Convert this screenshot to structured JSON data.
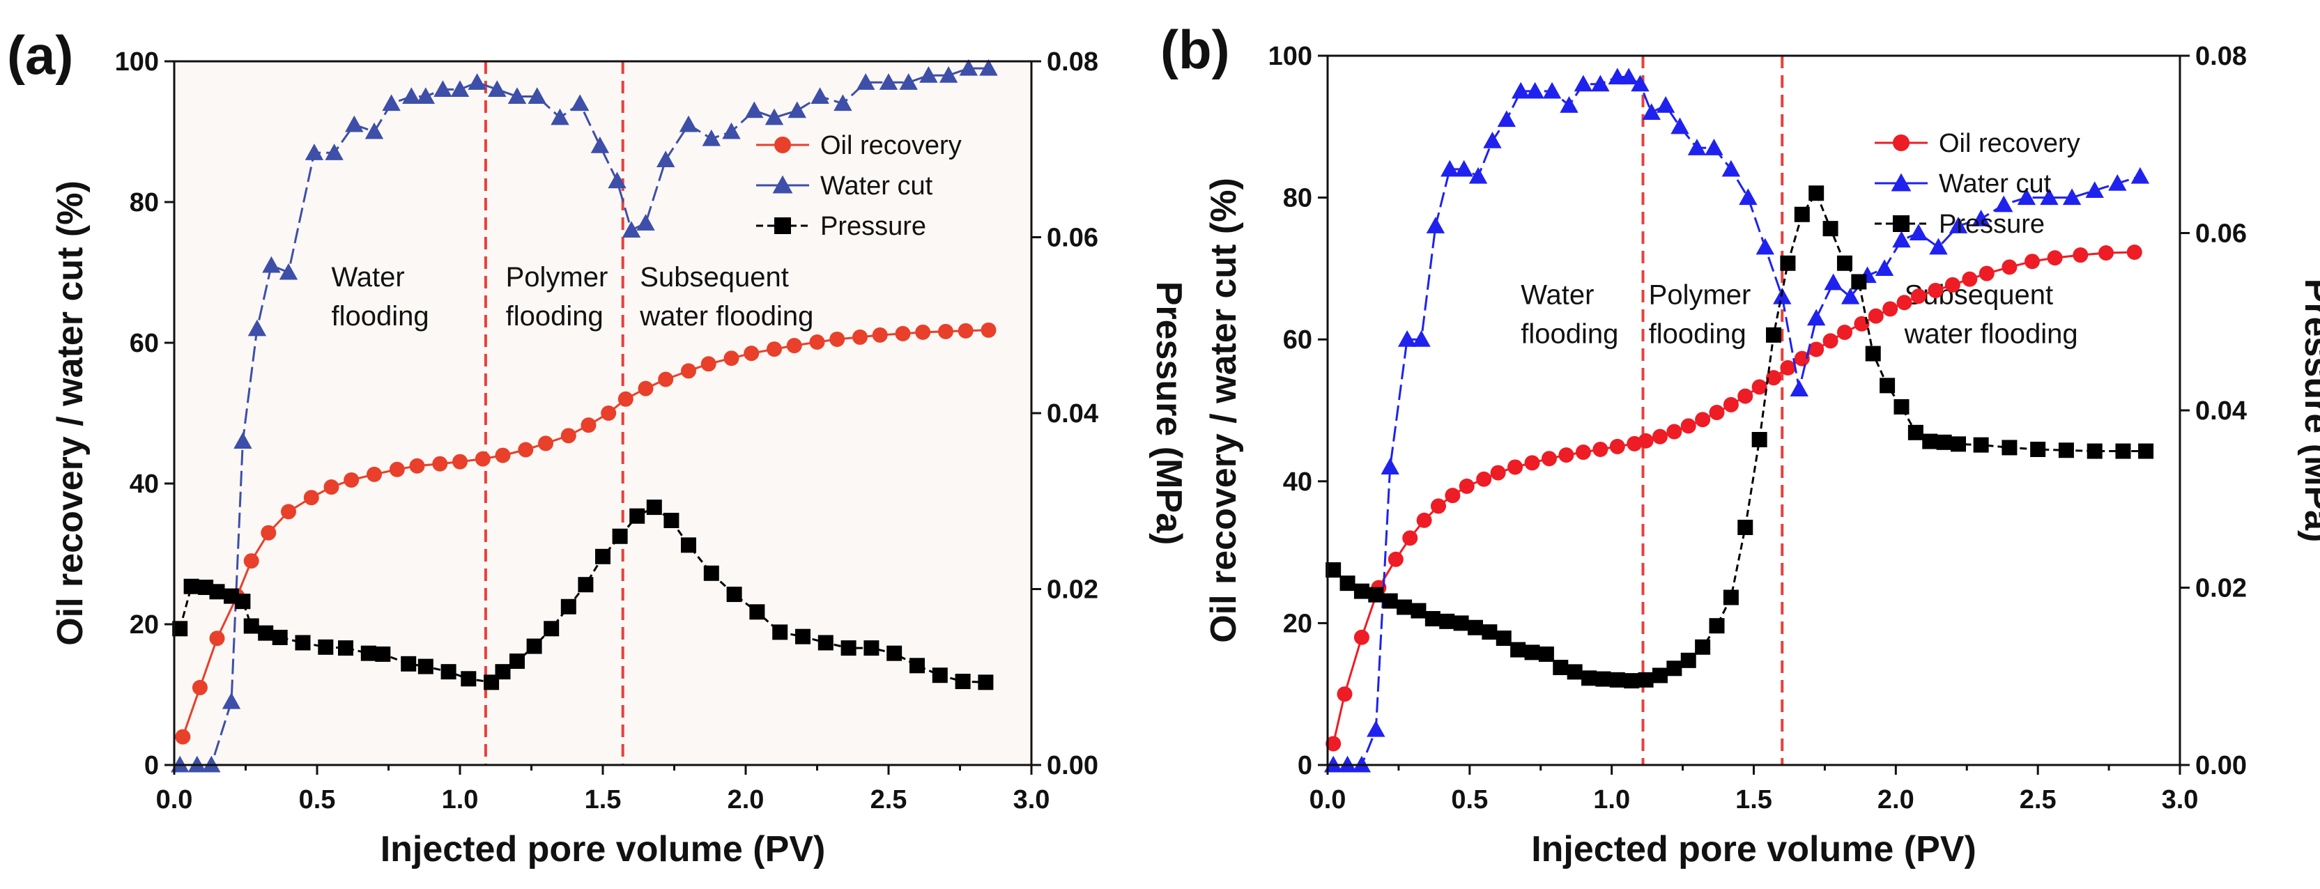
{
  "colors": {
    "oil_a": "#e8402a",
    "water_a": "#3d4fa8",
    "pressure": "#000000",
    "oil_b": "#ee1c24",
    "water_b": "#1f22ee",
    "divider": "#e8403a",
    "plot_bg_a": "#fcf8f6",
    "plot_bg_b": "#ffffff"
  },
  "chart_data": [
    {
      "panel_label": "(a)",
      "type": "line",
      "xlabel": "Injected pore volume (PV)",
      "ylabel": "Oil recovery / water cut (%)",
      "y2label": "Pressure (MPa)",
      "xlim": [
        0,
        3.0
      ],
      "ylim": [
        0,
        100
      ],
      "y2lim": [
        0,
        0.08
      ],
      "x_ticks": [
        "0.0",
        "0.5",
        "1.0",
        "1.5",
        "2.0",
        "2.5",
        "3.0"
      ],
      "y_ticks": [
        "0",
        "20",
        "40",
        "60",
        "80",
        "100"
      ],
      "y2_ticks": [
        "0.00",
        "0.02",
        "0.04",
        "0.06",
        "0.08"
      ],
      "stage_boundaries": [
        1.09,
        1.57
      ],
      "stage_labels": [
        {
          "line1": "Water",
          "line2": "flooding",
          "x": 0.55,
          "y": 68
        },
        {
          "line1": "Polymer",
          "line2": "flooding",
          "x": 1.16,
          "y": 68
        },
        {
          "line1": "Subsequent",
          "line2": "water flooding",
          "x": 1.63,
          "y": 68
        }
      ],
      "legend": [
        "Oil recovery",
        "Water cut",
        "Pressure"
      ],
      "series": [
        {
          "name": "Oil recovery",
          "axis": "left",
          "marker": "circle",
          "color": "#e8402a",
          "x": [
            0.03,
            0.09,
            0.15,
            0.22,
            0.27,
            0.33,
            0.4,
            0.48,
            0.55,
            0.62,
            0.7,
            0.78,
            0.85,
            0.93,
            1.0,
            1.08,
            1.15,
            1.23,
            1.3,
            1.38,
            1.45,
            1.52,
            1.58,
            1.65,
            1.72,
            1.8,
            1.87,
            1.95,
            2.02,
            2.1,
            2.17,
            2.25,
            2.32,
            2.4,
            2.47,
            2.55,
            2.62,
            2.7,
            2.77,
            2.85
          ],
          "y": [
            4,
            11,
            18,
            24,
            29,
            33,
            36,
            38,
            39.5,
            40.5,
            41.3,
            42,
            42.5,
            42.8,
            43.1,
            43.5,
            44,
            44.8,
            45.7,
            46.8,
            48.3,
            50,
            52,
            53.5,
            54.8,
            56,
            57,
            57.8,
            58.5,
            59.1,
            59.6,
            60.1,
            60.5,
            60.8,
            61.1,
            61.3,
            61.5,
            61.6,
            61.7,
            61.8
          ]
        },
        {
          "name": "Water cut",
          "axis": "left",
          "marker": "triangle",
          "color": "#3d4fa8",
          "x": [
            0.02,
            0.08,
            0.13,
            0.2,
            0.24,
            0.29,
            0.34,
            0.4,
            0.49,
            0.56,
            0.63,
            0.7,
            0.76,
            0.83,
            0.88,
            0.94,
            1.0,
            1.06,
            1.13,
            1.2,
            1.27,
            1.35,
            1.42,
            1.49,
            1.55,
            1.6,
            1.65,
            1.72,
            1.8,
            1.88,
            1.95,
            2.03,
            2.1,
            2.18,
            2.26,
            2.34,
            2.42,
            2.5,
            2.57,
            2.64,
            2.71,
            2.78,
            2.85
          ],
          "y": [
            0,
            0,
            0,
            9,
            46,
            62,
            71,
            70,
            87,
            87,
            91,
            90,
            94,
            95,
            95,
            96,
            96,
            97,
            96,
            95,
            95,
            92,
            94,
            88,
            83,
            76,
            77,
            86,
            91,
            89,
            90,
            93,
            92,
            93,
            95,
            94,
            97,
            97,
            97,
            98,
            98,
            99,
            99
          ]
        },
        {
          "name": "Pressure",
          "axis": "right",
          "marker": "square",
          "color": "#000000",
          "x": [
            0.02,
            0.06,
            0.11,
            0.15,
            0.2,
            0.24,
            0.27,
            0.32,
            0.37,
            0.45,
            0.53,
            0.6,
            0.68,
            0.73,
            0.82,
            0.88,
            0.96,
            1.03,
            1.11,
            1.15,
            1.2,
            1.26,
            1.32,
            1.38,
            1.44,
            1.5,
            1.56,
            1.62,
            1.68,
            1.74,
            1.8,
            1.88,
            1.96,
            2.04,
            2.12,
            2.2,
            2.28,
            2.36,
            2.44,
            2.52,
            2.6,
            2.68,
            2.76,
            2.84
          ],
          "y": [
            0.0155,
            0.0203,
            0.0202,
            0.0197,
            0.0192,
            0.0186,
            0.0158,
            0.015,
            0.0145,
            0.0139,
            0.0134,
            0.0133,
            0.0127,
            0.0126,
            0.0115,
            0.0112,
            0.0106,
            0.0098,
            0.0094,
            0.0106,
            0.0118,
            0.0135,
            0.0155,
            0.018,
            0.0205,
            0.0237,
            0.026,
            0.0283,
            0.0293,
            0.0278,
            0.025,
            0.0218,
            0.0194,
            0.0174,
            0.0151,
            0.0146,
            0.0139,
            0.0133,
            0.0133,
            0.0127,
            0.0113,
            0.0102,
            0.0095,
            0.0094
          ]
        }
      ]
    },
    {
      "panel_label": "(b)",
      "type": "line",
      "xlabel": "Injected pore volume (PV)",
      "ylabel": "Oil recovery / water cut (%)",
      "y2label": "Pressure (MPa)",
      "xlim": [
        0,
        3.0
      ],
      "ylim": [
        0,
        100
      ],
      "y2lim": [
        0,
        0.08
      ],
      "x_ticks": [
        "0.0",
        "0.5",
        "1.0",
        "1.5",
        "2.0",
        "2.5",
        "3.0"
      ],
      "y_ticks": [
        "0",
        "20",
        "40",
        "60",
        "80",
        "100"
      ],
      "y2_ticks": [
        "0.00",
        "0.02",
        "0.04",
        "0.06",
        "0.08"
      ],
      "stage_boundaries": [
        1.11,
        1.6
      ],
      "stage_labels": [
        {
          "line1": "Water",
          "line2": "flooding",
          "x": 0.68,
          "y": 65
        },
        {
          "line1": "Polymer",
          "line2": "flooding",
          "x": 1.13,
          "y": 65
        },
        {
          "line1": "Subsequent",
          "line2": "water flooding",
          "x": 2.03,
          "y": 65
        }
      ],
      "legend": [
        "Oil recovery",
        "Water cut",
        "Pressure"
      ],
      "series": [
        {
          "name": "Oil recovery",
          "axis": "left",
          "marker": "circle",
          "color": "#ee1c24",
          "x": [
            0.02,
            0.06,
            0.12,
            0.18,
            0.24,
            0.29,
            0.34,
            0.39,
            0.44,
            0.49,
            0.55,
            0.6,
            0.66,
            0.72,
            0.78,
            0.84,
            0.9,
            0.96,
            1.02,
            1.08,
            1.12,
            1.17,
            1.22,
            1.27,
            1.32,
            1.37,
            1.42,
            1.47,
            1.52,
            1.57,
            1.62,
            1.67,
            1.72,
            1.77,
            1.82,
            1.88,
            1.93,
            1.98,
            2.03,
            2.08,
            2.14,
            2.2,
            2.26,
            2.32,
            2.4,
            2.48,
            2.56,
            2.65,
            2.74,
            2.84
          ],
          "y": [
            3,
            10,
            18,
            25,
            29,
            32,
            34.5,
            36.5,
            38,
            39.3,
            40.3,
            41.2,
            42,
            42.6,
            43.2,
            43.7,
            44.1,
            44.5,
            44.9,
            45.3,
            45.7,
            46.3,
            47,
            47.8,
            48.7,
            49.7,
            50.8,
            52,
            53.3,
            54.6,
            56,
            57.3,
            58.6,
            59.8,
            61,
            62.2,
            63.3,
            64.3,
            65.2,
            66.1,
            66.9,
            67.7,
            68.5,
            69.3,
            70.2,
            71,
            71.5,
            71.9,
            72.2,
            72.3
          ]
        },
        {
          "name": "Water cut",
          "axis": "left",
          "marker": "triangle",
          "color": "#1f22ee",
          "x": [
            0.02,
            0.07,
            0.12,
            0.17,
            0.22,
            0.28,
            0.33,
            0.38,
            0.43,
            0.48,
            0.53,
            0.58,
            0.63,
            0.68,
            0.73,
            0.79,
            0.85,
            0.9,
            0.96,
            1.02,
            1.06,
            1.1,
            1.14,
            1.19,
            1.24,
            1.3,
            1.36,
            1.42,
            1.48,
            1.54,
            1.6,
            1.66,
            1.72,
            1.78,
            1.84,
            1.9,
            1.96,
            2.02,
            2.08,
            2.15,
            2.22,
            2.3,
            2.38,
            2.46,
            2.54,
            2.62,
            2.7,
            2.78,
            2.86
          ],
          "y": [
            0,
            0,
            0,
            5,
            42,
            60,
            60,
            76,
            84,
            84,
            83,
            88,
            91,
            95,
            95,
            95,
            93,
            96,
            96,
            97,
            97,
            96,
            92,
            93,
            90,
            87,
            87,
            84,
            80,
            73,
            66,
            53,
            63,
            68,
            66,
            69,
            70,
            74,
            75,
            73,
            76,
            77,
            79,
            80,
            80,
            80,
            81,
            82,
            83
          ]
        },
        {
          "name": "Pressure",
          "axis": "right",
          "marker": "square",
          "color": "#000000",
          "x": [
            0.02,
            0.07,
            0.12,
            0.17,
            0.22,
            0.27,
            0.32,
            0.37,
            0.42,
            0.47,
            0.52,
            0.57,
            0.62,
            0.67,
            0.72,
            0.77,
            0.82,
            0.87,
            0.92,
            0.97,
            1.02,
            1.07,
            1.12,
            1.17,
            1.22,
            1.27,
            1.32,
            1.37,
            1.42,
            1.47,
            1.52,
            1.57,
            1.62,
            1.67,
            1.72,
            1.77,
            1.82,
            1.87,
            1.92,
            1.97,
            2.02,
            2.07,
            2.12,
            2.17,
            2.22,
            2.3,
            2.4,
            2.5,
            2.6,
            2.7,
            2.8,
            2.88
          ],
          "y": [
            0.022,
            0.0205,
            0.0196,
            0.0192,
            0.0185,
            0.0178,
            0.0174,
            0.0165,
            0.0162,
            0.016,
            0.0155,
            0.015,
            0.0143,
            0.013,
            0.0127,
            0.0125,
            0.011,
            0.0105,
            0.0098,
            0.0097,
            0.0096,
            0.0095,
            0.0096,
            0.0101,
            0.0109,
            0.0118,
            0.0133,
            0.0157,
            0.0189,
            0.0268,
            0.0367,
            0.0485,
            0.0566,
            0.0621,
            0.0645,
            0.0605,
            0.0566,
            0.0545,
            0.0464,
            0.0428,
            0.0404,
            0.0375,
            0.0365,
            0.0364,
            0.0362,
            0.0361,
            0.0358,
            0.0356,
            0.0355,
            0.0354,
            0.0354,
            0.0354
          ]
        }
      ]
    }
  ]
}
